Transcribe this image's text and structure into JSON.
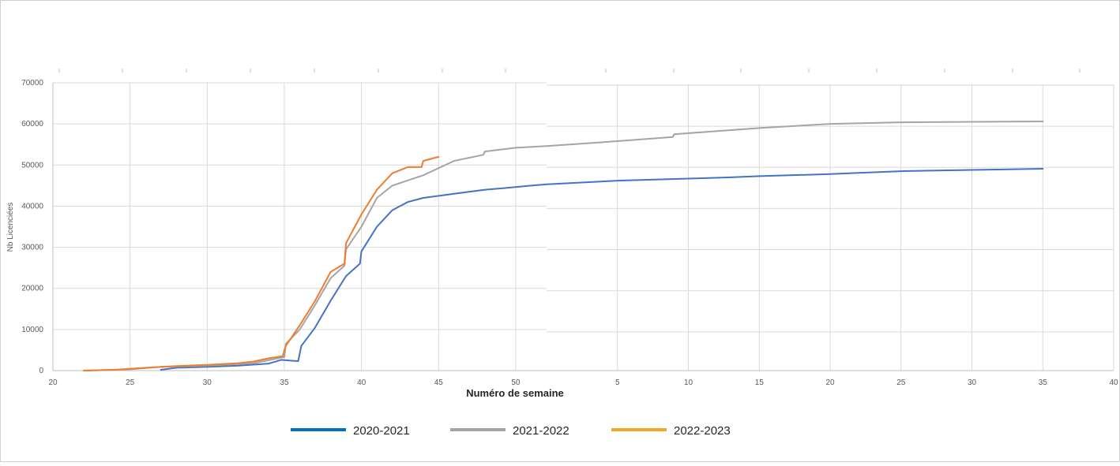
{
  "chart_data": {
    "type": "line",
    "xlabel": "Numéro de semaine",
    "ylabel": "Nb Licenciées",
    "ylim": [
      0,
      70000
    ],
    "yticks": [
      0,
      10000,
      20000,
      30000,
      40000,
      50000,
      60000,
      70000
    ],
    "ytick_labels": [
      "0",
      "10000",
      "20000",
      "30000",
      "40000",
      "50000",
      "60000",
      "70000"
    ],
    "x_segments": [
      {
        "xlim": [
          20,
          52
        ],
        "ticks": [
          20,
          25,
          30,
          35,
          40,
          45,
          50
        ]
      },
      {
        "xlim": [
          0,
          40
        ],
        "ticks": [
          5,
          10,
          15,
          20,
          25,
          30,
          35,
          40
        ]
      }
    ],
    "grid": true,
    "legend_position": "bottom",
    "series": [
      {
        "name": "2020-2021",
        "color": "#4472c4",
        "legend_color": "#0070c0",
        "points": [
          [
            0,
            27,
            200
          ],
          [
            0,
            28,
            700
          ],
          [
            0,
            30,
            900
          ],
          [
            0,
            32,
            1200
          ],
          [
            0,
            34,
            1700
          ],
          [
            0,
            34.8,
            2600
          ],
          [
            0,
            35.5,
            2400
          ],
          [
            0,
            35.9,
            2300
          ],
          [
            0,
            36.1,
            6000
          ],
          [
            0,
            37,
            10500
          ],
          [
            0,
            38,
            17000
          ],
          [
            0,
            39,
            23000
          ],
          [
            0,
            39.9,
            26000
          ],
          [
            0,
            40,
            29000
          ],
          [
            0,
            41,
            35000
          ],
          [
            0,
            42,
            39000
          ],
          [
            0,
            43,
            41000
          ],
          [
            0,
            44,
            42000
          ],
          [
            0,
            46,
            43000
          ],
          [
            0,
            48,
            44000
          ],
          [
            0,
            49,
            44300
          ],
          [
            0,
            51,
            45000
          ],
          [
            0,
            52,
            45300
          ],
          [
            1,
            0,
            45300
          ],
          [
            1,
            5,
            46200
          ],
          [
            1,
            10,
            46700
          ],
          [
            1,
            13,
            47000
          ],
          [
            1,
            15,
            47300
          ],
          [
            1,
            20,
            47800
          ],
          [
            1,
            22,
            48100
          ],
          [
            1,
            25,
            48500
          ],
          [
            1,
            30,
            48800
          ],
          [
            1,
            35,
            49100
          ]
        ]
      },
      {
        "name": "2021-2022",
        "color": "#a5a5a5",
        "legend_color": "#a5a5a5",
        "points": [
          [
            0,
            22,
            0
          ],
          [
            0,
            25,
            300
          ],
          [
            0,
            27,
            900
          ],
          [
            0,
            30,
            1200
          ],
          [
            0,
            33,
            1800
          ],
          [
            0,
            34.6,
            3000
          ],
          [
            0,
            35,
            3300
          ],
          [
            0,
            35.1,
            6500
          ],
          [
            0,
            36,
            10000
          ],
          [
            0,
            37,
            16000
          ],
          [
            0,
            38,
            22500
          ],
          [
            0,
            38.9,
            25500
          ],
          [
            0,
            39,
            29500
          ],
          [
            0,
            40,
            35000
          ],
          [
            0,
            41,
            42000
          ],
          [
            0,
            42,
            45000
          ],
          [
            0,
            44,
            47500
          ],
          [
            0,
            46,
            51000
          ],
          [
            0,
            47.9,
            52500
          ],
          [
            0,
            48,
            53300
          ],
          [
            0,
            50,
            54200
          ],
          [
            0,
            52,
            54600
          ],
          [
            1,
            0,
            54600
          ],
          [
            1,
            5,
            55800
          ],
          [
            1,
            8.9,
            56800
          ],
          [
            1,
            9,
            57500
          ],
          [
            1,
            13,
            58500
          ],
          [
            1,
            15,
            59000
          ],
          [
            1,
            20,
            60000
          ],
          [
            1,
            25,
            60400
          ],
          [
            1,
            30,
            60500
          ],
          [
            1,
            35,
            60600
          ]
        ]
      },
      {
        "name": "2022-2023",
        "color": "#ed7d31",
        "legend_color": "#f5a623",
        "points": [
          [
            0,
            22,
            0
          ],
          [
            0,
            24,
            200
          ],
          [
            0,
            26,
            700
          ],
          [
            0,
            28,
            1100
          ],
          [
            0,
            30,
            1400
          ],
          [
            0,
            32,
            1800
          ],
          [
            0,
            33,
            2200
          ],
          [
            0,
            34,
            3000
          ],
          [
            0,
            34.9,
            3500
          ],
          [
            0,
            35,
            5000
          ],
          [
            0,
            35.1,
            6000
          ],
          [
            0,
            36,
            11000
          ],
          [
            0,
            37,
            17000
          ],
          [
            0,
            38,
            24000
          ],
          [
            0,
            38.9,
            26000
          ],
          [
            0,
            39,
            31000
          ],
          [
            0,
            40,
            38000
          ],
          [
            0,
            41,
            44000
          ],
          [
            0,
            42,
            48000
          ],
          [
            0,
            43,
            49500
          ],
          [
            0,
            43.9,
            49500
          ],
          [
            0,
            44,
            51000
          ],
          [
            0,
            45,
            52000
          ]
        ]
      }
    ]
  }
}
